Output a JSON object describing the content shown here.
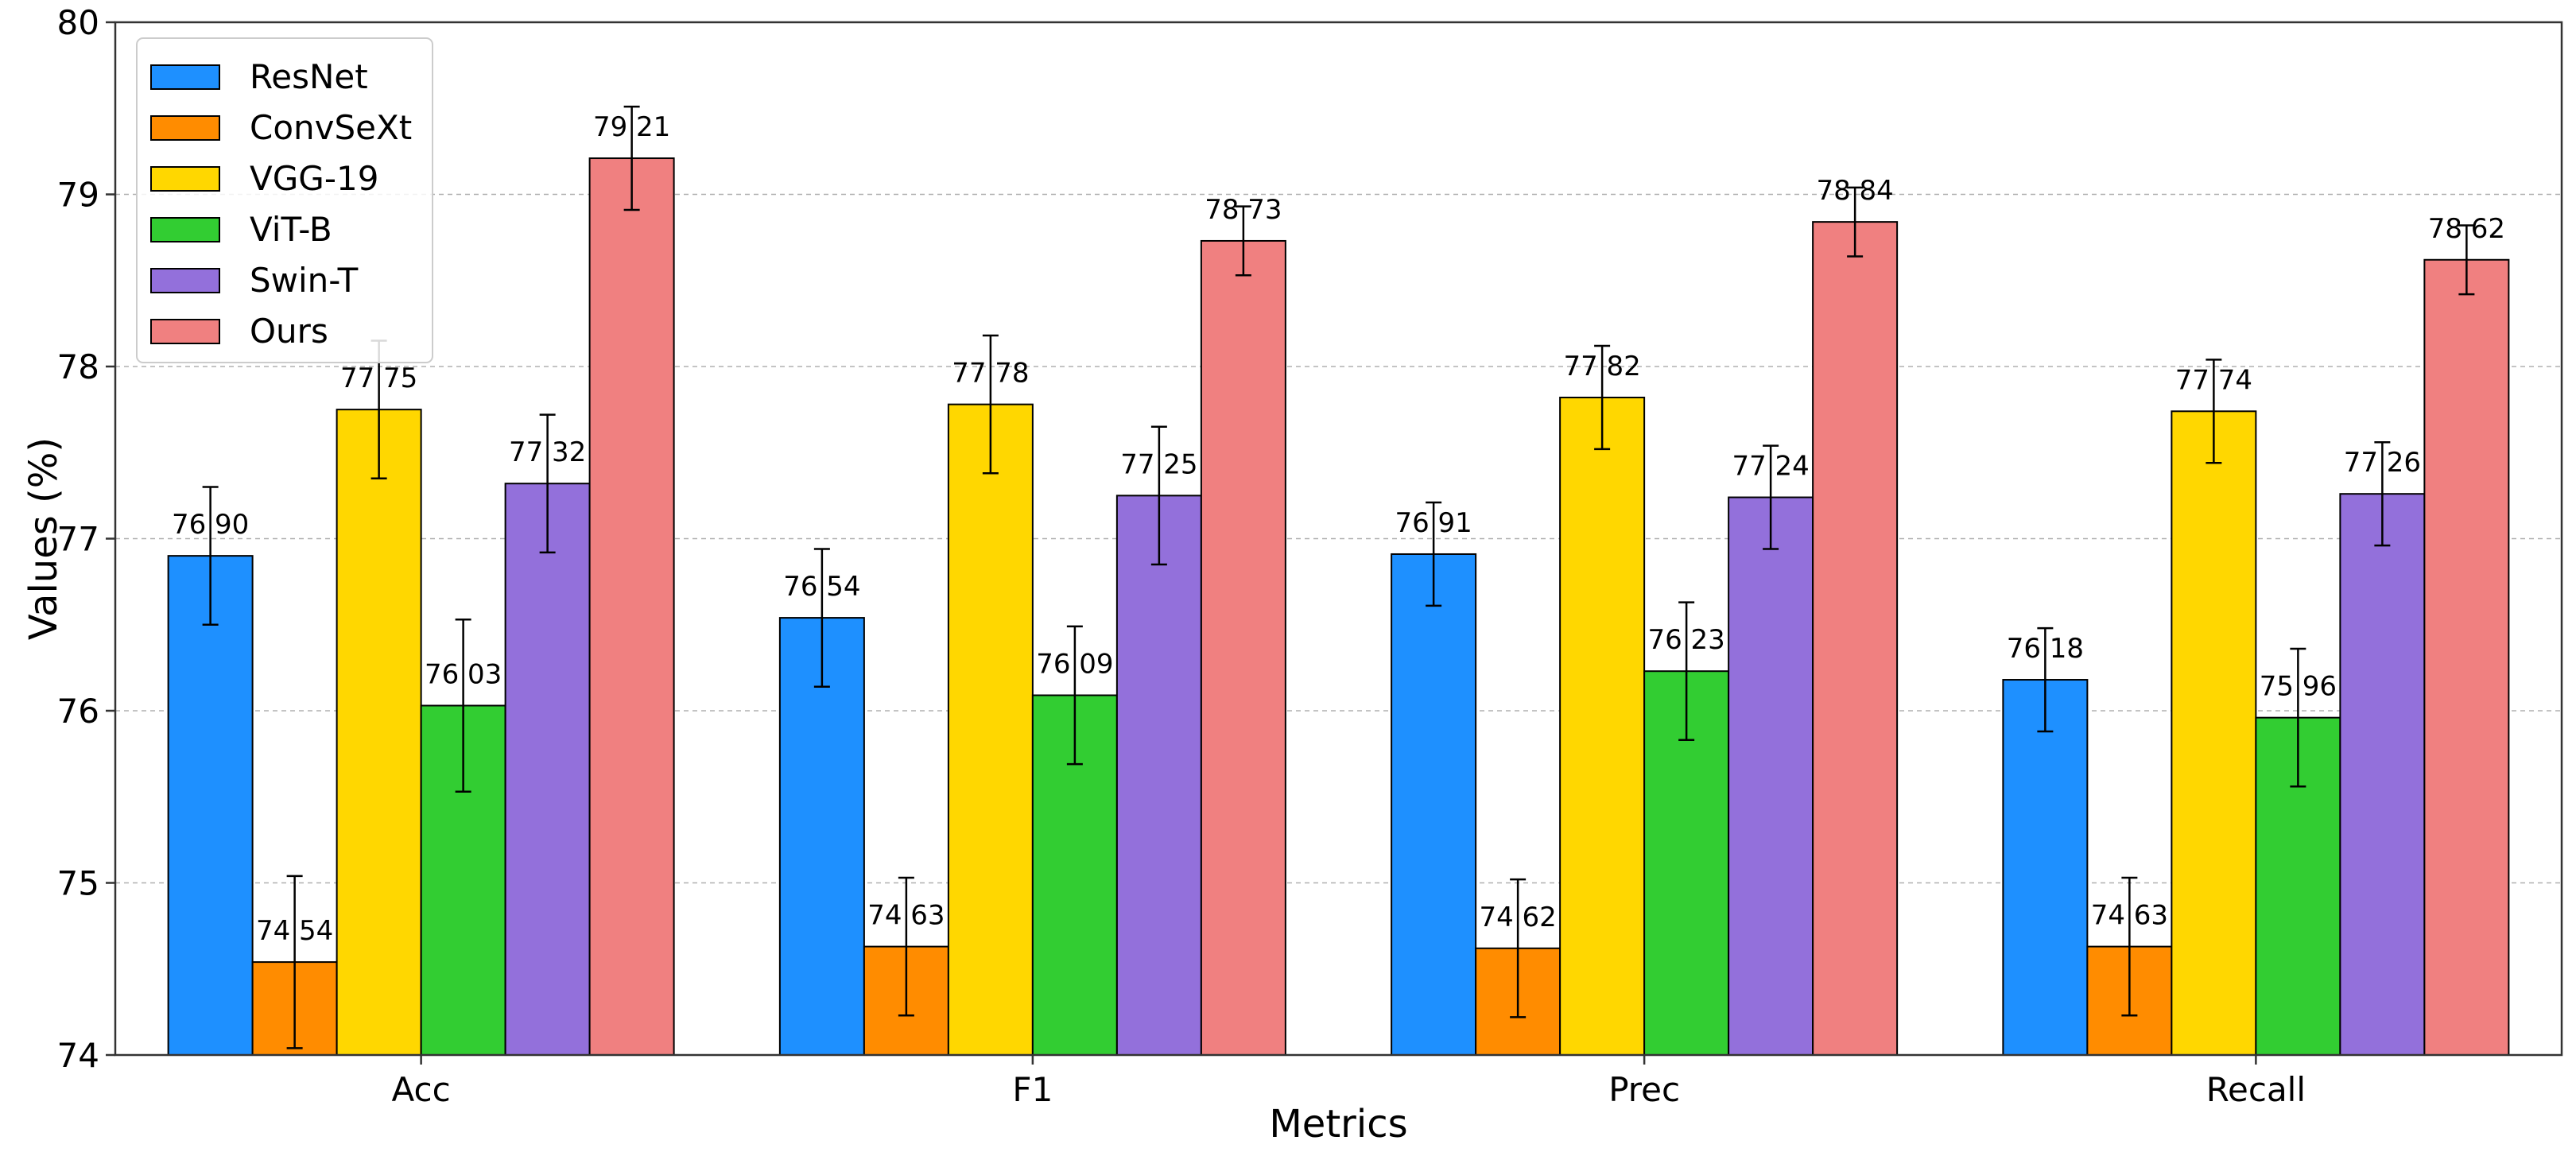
{
  "chart_data": {
    "type": "bar",
    "title": "",
    "xlabel": "Metrics",
    "ylabel": "Values (%)",
    "ylim": [
      74,
      80
    ],
    "yticks": [
      "74",
      "75",
      "76",
      "77",
      "78",
      "79",
      "80"
    ],
    "grid": "horizontal dashed",
    "legend_position": "top-left",
    "categories": [
      "Acc",
      "F1",
      "Prec",
      "Recall"
    ],
    "series": [
      {
        "name": "ResNet",
        "color": "#1e90ff",
        "values": [
          76.9,
          76.54,
          76.91,
          76.18
        ],
        "errors": [
          0.4,
          0.4,
          0.3,
          0.3
        ],
        "labels": [
          "76 90",
          "76 54",
          "76 91",
          "76 18"
        ]
      },
      {
        "name": "ConvSeXt",
        "color": "#ff8c00",
        "values": [
          74.54,
          74.63,
          74.62,
          74.63
        ],
        "errors": [
          0.5,
          0.4,
          0.4,
          0.4
        ],
        "labels": [
          "74 54",
          "74 63",
          "74 62",
          "74 63"
        ]
      },
      {
        "name": "VGG-19",
        "color": "#ffd700",
        "values": [
          77.75,
          77.78,
          77.82,
          77.74
        ],
        "errors": [
          0.4,
          0.4,
          0.3,
          0.3
        ],
        "labels": [
          "77 75",
          "77 78",
          "77 82",
          "77 74"
        ]
      },
      {
        "name": "ViT-B",
        "color": "#32cd32",
        "values": [
          76.03,
          76.09,
          76.23,
          75.96
        ],
        "errors": [
          0.5,
          0.4,
          0.4,
          0.4
        ],
        "labels": [
          "76 03",
          "76 09",
          "76 23",
          "75 96"
        ]
      },
      {
        "name": "Swin-T",
        "color": "#9370db",
        "values": [
          77.32,
          77.25,
          77.24,
          77.26
        ],
        "errors": [
          0.4,
          0.4,
          0.3,
          0.3
        ],
        "labels": [
          "77 32",
          "77 25",
          "77 24",
          "77 26"
        ]
      },
      {
        "name": "Ours",
        "color": "#f08080",
        "values": [
          79.21,
          78.73,
          78.84,
          78.62
        ],
        "errors": [
          0.3,
          0.2,
          0.2,
          0.2
        ],
        "labels": [
          "79 21",
          "78 73",
          "78 84",
          "78 62"
        ]
      }
    ]
  }
}
